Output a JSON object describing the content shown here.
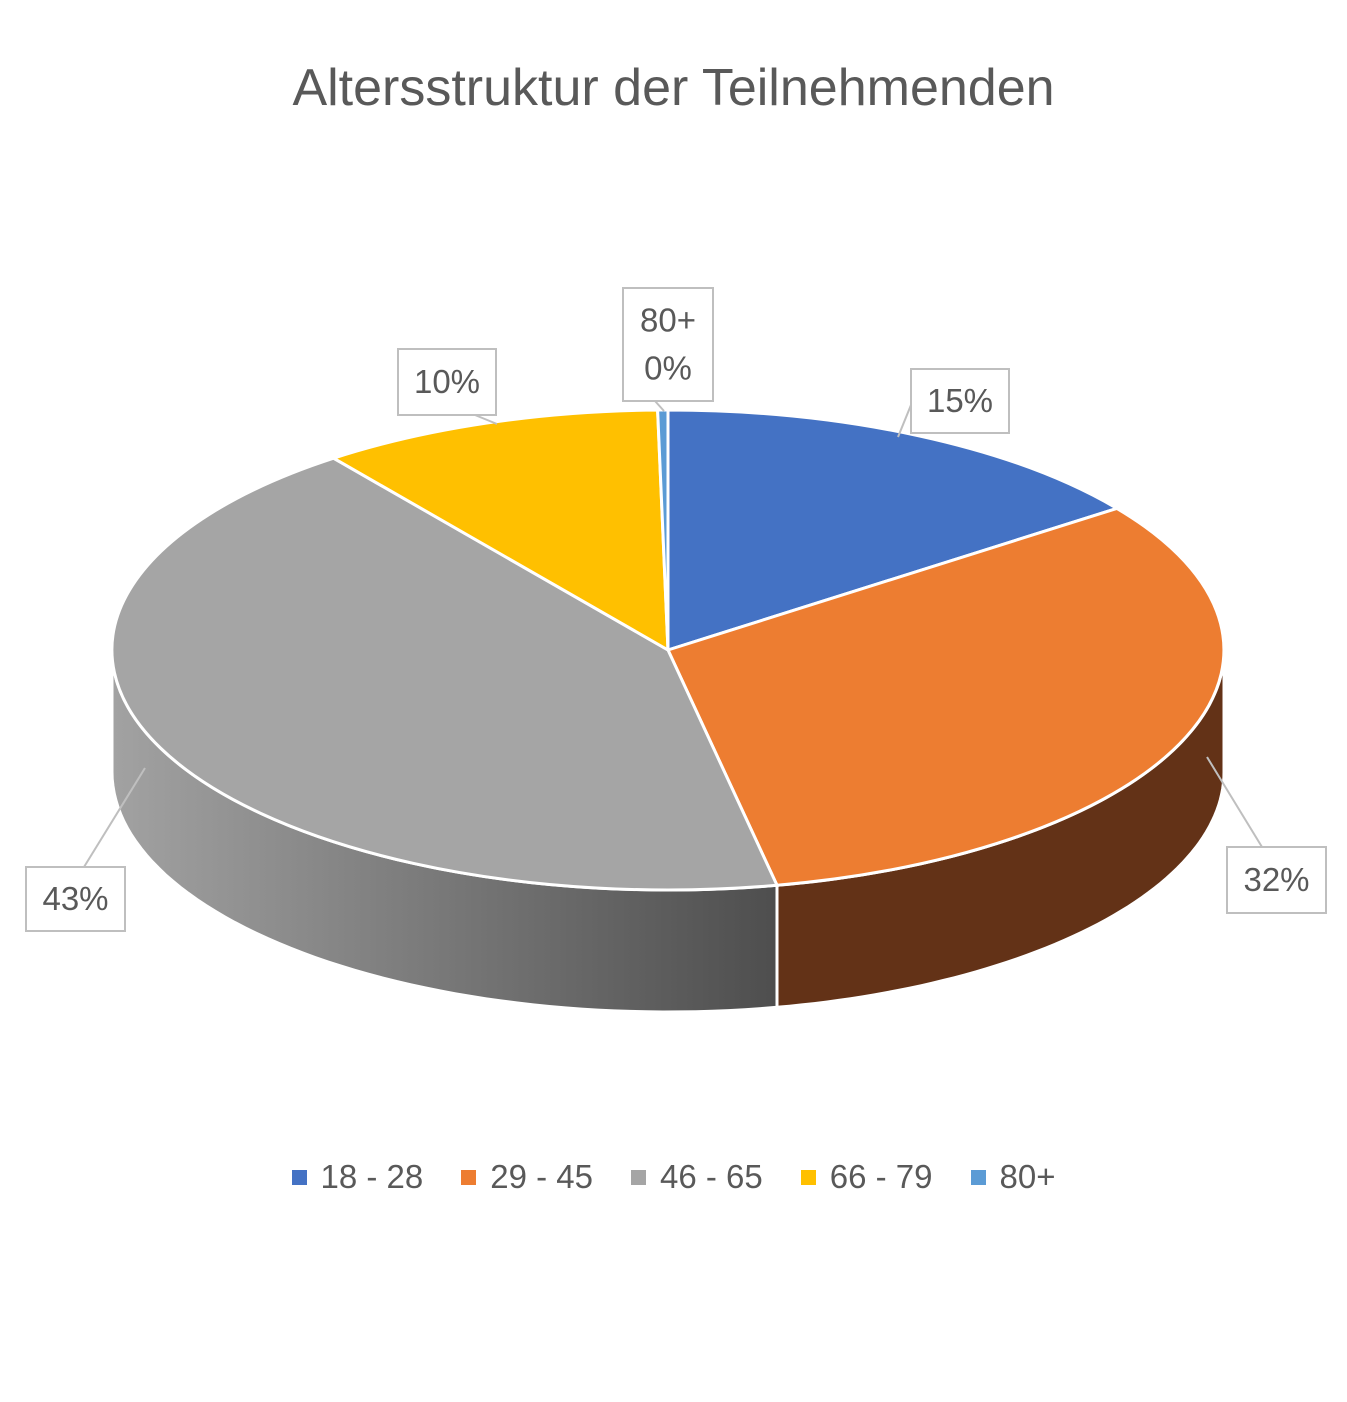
{
  "chart_data": {
    "type": "pie",
    "title": "Altersstruktur der Teilnehmenden",
    "categories": [
      "18 - 28",
      "29 - 45",
      "46 - 65",
      "66 - 79",
      "80+"
    ],
    "values": [
      15,
      32,
      43,
      10,
      0.3
    ],
    "data_labels": [
      "15%",
      "32%",
      "43%",
      "10%",
      "0%"
    ],
    "colors": [
      "#4472C4",
      "#ED7D31",
      "#A5A5A5",
      "#FFC000",
      "#5B9BD5"
    ],
    "side_colors": [
      "#29457A",
      "#633217",
      "#5E5E5E",
      "#8F6B00",
      "#37608A"
    ],
    "legend_position": "bottom",
    "style": "3d"
  }
}
